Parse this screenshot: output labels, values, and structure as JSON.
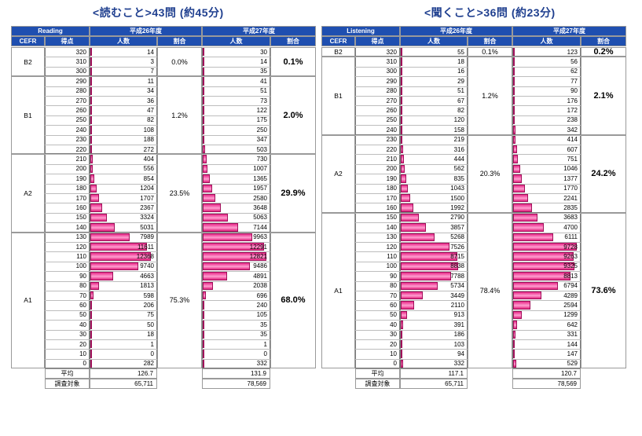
{
  "reading": {
    "title": "<読むこと>43問 (約45分)",
    "head": {
      "section": "Reading",
      "cefr": "CEFR",
      "score": "得点",
      "y1": "平成26年度",
      "y2": "平成27年度",
      "count": "人数",
      "ratio": "割合"
    },
    "groups": [
      {
        "cefr": "B2",
        "rows": 3,
        "p1": "0.0%",
        "p2": "0.1%"
      },
      {
        "cefr": "B1",
        "rows": 8,
        "p1": "1.2%",
        "p2": "2.0%"
      },
      {
        "cefr": "A2",
        "rows": 8,
        "p1": "23.5%",
        "p2": "29.9%"
      },
      {
        "cefr": "A1",
        "rows": 14,
        "p1": "75.3%",
        "p2": "68.0%"
      }
    ],
    "scores": [
      "320",
      "310",
      "300",
      "290",
      "280",
      "270",
      "260",
      "250",
      "240",
      "230",
      "220",
      "210",
      "200",
      "190",
      "180",
      "170",
      "160",
      "150",
      "140",
      "130",
      "120",
      "110",
      "100",
      "90",
      "80",
      "70",
      "60",
      "50",
      "40",
      "30",
      "20",
      "10",
      "0"
    ],
    "y1": [
      "14",
      "3",
      "7",
      "11",
      "34",
      "36",
      "47",
      "82",
      "108",
      "188",
      "272",
      "404",
      "556",
      "854",
      "1204",
      "1707",
      "2367",
      "3324",
      "5031",
      "7989",
      "11611",
      "12368",
      "9740",
      "4663",
      "1813",
      "598",
      "206",
      "75",
      "50",
      "18",
      "1",
      "0",
      "282"
    ],
    "y2": [
      "30",
      "14",
      "35",
      "41",
      "51",
      "73",
      "122",
      "175",
      "250",
      "347",
      "503",
      "730",
      "1007",
      "1365",
      "1957",
      "2580",
      "3648",
      "5063",
      "7144",
      "9963",
      "12291",
      "12821",
      "9486",
      "4891",
      "2038",
      "696",
      "240",
      "105",
      "35",
      "35",
      "1",
      "0",
      "332"
    ],
    "foot": {
      "avg_label": "平均",
      "avg1": "126.7",
      "avg2": "131.9",
      "n_label": "調査対象",
      "n1": "65,711",
      "n2": "78,569"
    }
  },
  "listening": {
    "title": "<聞くこと>36問 (約23分)",
    "head": {
      "section": "Listening",
      "cefr": "CEFR",
      "score": "得点",
      "y1": "平成26年度",
      "y2": "平成27年度",
      "count": "人数",
      "ratio": "割合"
    },
    "groups": [
      {
        "cefr": "B2",
        "rows": 1,
        "p1": "0.1%",
        "p2": "0.2%"
      },
      {
        "cefr": "B1",
        "rows": 8,
        "p1": "1.2%",
        "p2": "2.1%"
      },
      {
        "cefr": "A2",
        "rows": 8,
        "p1": "20.3%",
        "p2": "24.2%"
      },
      {
        "cefr": "A1",
        "rows": 16,
        "p1": "78.4%",
        "p2": "73.6%"
      }
    ],
    "scores": [
      "320",
      "310",
      "300",
      "290",
      "280",
      "270",
      "260",
      "250",
      "240",
      "230",
      "220",
      "210",
      "200",
      "190",
      "180",
      "170",
      "160",
      "150",
      "140",
      "130",
      "120",
      "110",
      "100",
      "90",
      "80",
      "70",
      "60",
      "50",
      "40",
      "30",
      "20",
      "10",
      "0"
    ],
    "y1": [
      "55",
      "18",
      "16",
      "29",
      "51",
      "67",
      "82",
      "120",
      "158",
      "219",
      "316",
      "444",
      "562",
      "835",
      "1043",
      "1500",
      "1992",
      "2790",
      "3857",
      "5268",
      "7526",
      "8715",
      "8838",
      "7788",
      "5734",
      "3449",
      "2110",
      "913",
      "391",
      "186",
      "103",
      "94",
      "332"
    ],
    "y2": [
      "123",
      "56",
      "62",
      "77",
      "90",
      "176",
      "172",
      "238",
      "342",
      "414",
      "607",
      "751",
      "1046",
      "1377",
      "1770",
      "2241",
      "2835",
      "3683",
      "4700",
      "6111",
      "9728",
      "9263",
      "9325",
      "8813",
      "6794",
      "4289",
      "2594",
      "1299",
      "642",
      "331",
      "144",
      "147",
      "529"
    ],
    "foot": {
      "avg_label": "平均",
      "avg1": "117.1",
      "avg2": "120.7",
      "n_label": "調査対象",
      "n1": "65,711",
      "n2": "78,569"
    }
  },
  "colors": {
    "header": "#1f4fb0",
    "bar": "#e0207c",
    "title": "#1f3f8f"
  }
}
